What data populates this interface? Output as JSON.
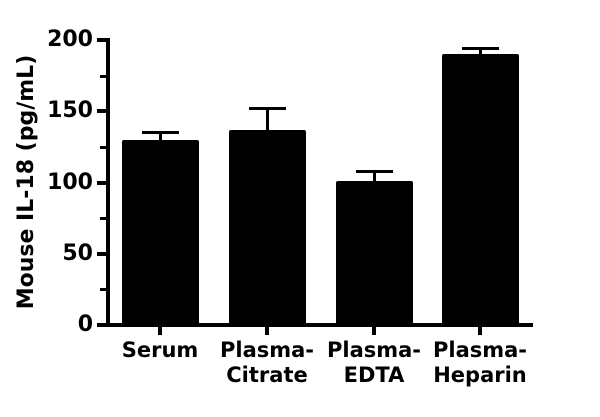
{
  "figure": {
    "background": "#ffffff"
  },
  "chart_data": {
    "type": "bar",
    "title": "",
    "xlabel": "",
    "ylabel": "Mouse IL-18 (pg/mL)",
    "categories": [
      "Serum",
      "Plasma-Citrate",
      "Plasma-EDTA",
      "Plasma-Heparin"
    ],
    "category_label_lines": [
      [
        "Serum"
      ],
      [
        "Plasma-",
        "Citrate"
      ],
      [
        "Plasma-",
        "EDTA"
      ],
      [
        "Plasma-",
        "Heparin"
      ]
    ],
    "values": [
      130,
      137,
      101,
      190
    ],
    "error_plus": [
      5,
      15,
      7,
      4
    ],
    "ylim": [
      0,
      200
    ],
    "ytick_major": [
      0,
      50,
      100,
      150,
      200
    ],
    "ytick_major_labels": [
      "0",
      "50",
      "100",
      "150",
      "200"
    ],
    "ytick_minor": [
      25,
      75,
      125,
      175
    ],
    "bar_color": "#000000",
    "axis_color": "#000000",
    "background": "#ffffff",
    "grid": false,
    "legend": null
  }
}
